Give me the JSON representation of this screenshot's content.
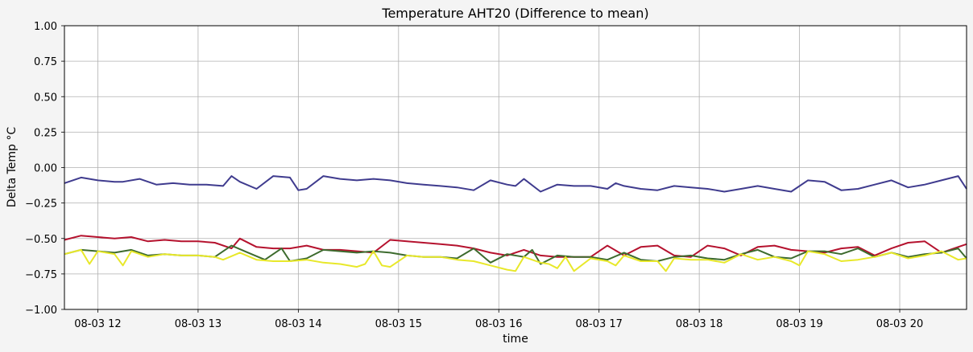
{
  "chart_data": {
    "type": "line",
    "title": "Temperature AHT20 (Difference to mean)",
    "xlabel": "time",
    "ylabel": "Delta Temp °C",
    "ylim": [
      -1.0,
      1.0
    ],
    "xlim": [
      "08-03 11:40",
      "08-03 20:40"
    ],
    "grid": true,
    "legend": "none",
    "yticks": [
      1.0,
      0.75,
      0.5,
      0.25,
      0.0,
      -0.25,
      -0.5,
      -0.75,
      -1.0
    ],
    "ytick_labels": [
      "1.00",
      "0.75",
      "0.50",
      "0.25",
      "0.00",
      "−0.25",
      "−0.50",
      "−0.75",
      "−1.00"
    ],
    "xticks": [
      "08-03 12:00",
      "08-03 13:00",
      "08-03 14:00",
      "08-03 15:00",
      "08-03 16:00",
      "08-03 17:00",
      "08-03 18:00",
      "08-03 19:00",
      "08-03 20:00"
    ],
    "xtick_labels": [
      "08-03 12",
      "08-03 13",
      "08-03 14",
      "08-03 15",
      "08-03 16",
      "08-03 17",
      "08-03 18",
      "08-03 19",
      "08-03 20"
    ],
    "series": [
      {
        "color": "#3f3b8e",
        "x": [
          "08-03 11:40",
          "08-03 11:50",
          "08-03 12:00",
          "08-03 12:10",
          "08-03 12:15",
          "08-03 12:25",
          "08-03 12:35",
          "08-03 12:45",
          "08-03 12:55",
          "08-03 13:05",
          "08-03 13:15",
          "08-03 13:20",
          "08-03 13:25",
          "08-03 13:35",
          "08-03 13:45",
          "08-03 13:55",
          "08-03 14:00",
          "08-03 14:05",
          "08-03 14:15",
          "08-03 14:25",
          "08-03 14:35",
          "08-03 14:45",
          "08-03 14:55",
          "08-03 15:05",
          "08-03 15:15",
          "08-03 15:25",
          "08-03 15:35",
          "08-03 15:45",
          "08-03 15:55",
          "08-03 16:05",
          "08-03 16:10",
          "08-03 16:15",
          "08-03 16:25",
          "08-03 16:35",
          "08-03 16:45",
          "08-03 16:55",
          "08-03 17:05",
          "08-03 17:10",
          "08-03 17:15",
          "08-03 17:25",
          "08-03 17:35",
          "08-03 17:45",
          "08-03 17:55",
          "08-03 18:05",
          "08-03 18:10",
          "08-03 18:15",
          "08-03 18:25",
          "08-03 18:35",
          "08-03 18:45",
          "08-03 18:55",
          "08-03 19:05",
          "08-03 19:15",
          "08-03 19:25",
          "08-03 19:35",
          "08-03 19:45",
          "08-03 19:55",
          "08-03 20:05",
          "08-03 20:15",
          "08-03 20:25",
          "08-03 20:35",
          "08-03 20:40"
        ],
        "y": [
          -0.11,
          -0.07,
          -0.09,
          -0.1,
          -0.1,
          -0.08,
          -0.12,
          -0.11,
          -0.12,
          -0.12,
          -0.13,
          -0.06,
          -0.1,
          -0.15,
          -0.06,
          -0.07,
          -0.16,
          -0.15,
          -0.06,
          -0.08,
          -0.09,
          -0.08,
          -0.09,
          -0.11,
          -0.12,
          -0.13,
          -0.14,
          -0.16,
          -0.09,
          -0.12,
          -0.13,
          -0.08,
          -0.17,
          -0.12,
          -0.13,
          -0.13,
          -0.15,
          -0.11,
          -0.13,
          -0.15,
          -0.16,
          -0.13,
          -0.14,
          -0.15,
          -0.16,
          -0.17,
          -0.15,
          -0.13,
          -0.15,
          -0.17,
          -0.09,
          -0.1,
          -0.16,
          -0.15,
          -0.12,
          -0.09,
          -0.14,
          -0.12,
          -0.09,
          -0.06,
          -0.15
        ]
      },
      {
        "color": "#b5122e",
        "x": [
          "08-03 11:40",
          "08-03 11:50",
          "08-03 12:00",
          "08-03 12:10",
          "08-03 12:20",
          "08-03 12:30",
          "08-03 12:40",
          "08-03 12:50",
          "08-03 13:00",
          "08-03 13:10",
          "08-03 13:20",
          "08-03 13:25",
          "08-03 13:35",
          "08-03 13:45",
          "08-03 13:55",
          "08-03 14:05",
          "08-03 14:15",
          "08-03 14:25",
          "08-03 14:35",
          "08-03 14:45",
          "08-03 14:55",
          "08-03 15:05",
          "08-03 15:15",
          "08-03 15:25",
          "08-03 15:35",
          "08-03 15:45",
          "08-03 15:55",
          "08-03 16:05",
          "08-03 16:15",
          "08-03 16:25",
          "08-03 16:35",
          "08-03 16:45",
          "08-03 16:55",
          "08-03 17:05",
          "08-03 17:15",
          "08-03 17:25",
          "08-03 17:35",
          "08-03 17:45",
          "08-03 17:55",
          "08-03 18:05",
          "08-03 18:15",
          "08-03 18:25",
          "08-03 18:35",
          "08-03 18:45",
          "08-03 18:55",
          "08-03 19:05",
          "08-03 19:15",
          "08-03 19:25",
          "08-03 19:35",
          "08-03 19:45",
          "08-03 19:55",
          "08-03 20:05",
          "08-03 20:15",
          "08-03 20:25",
          "08-03 20:35",
          "08-03 20:40"
        ],
        "y": [
          -0.51,
          -0.48,
          -0.49,
          -0.5,
          -0.49,
          -0.52,
          -0.51,
          -0.52,
          -0.52,
          -0.53,
          -0.57,
          -0.5,
          -0.56,
          -0.57,
          -0.57,
          -0.55,
          -0.58,
          -0.58,
          -0.59,
          -0.6,
          -0.51,
          -0.52,
          -0.53,
          -0.54,
          -0.55,
          -0.57,
          -0.6,
          -0.62,
          -0.58,
          -0.62,
          -0.63,
          -0.63,
          -0.63,
          -0.55,
          -0.62,
          -0.56,
          -0.55,
          -0.62,
          -0.63,
          -0.55,
          -0.57,
          -0.62,
          -0.56,
          -0.55,
          -0.58,
          -0.59,
          -0.6,
          -0.57,
          -0.56,
          -0.62,
          -0.57,
          -0.53,
          -0.52,
          -0.6,
          -0.56,
          -0.54
        ]
      },
      {
        "color": "#3d6b2e",
        "x": [
          "08-03 11:40",
          "08-03 11:50",
          "08-03 12:00",
          "08-03 12:10",
          "08-03 12:20",
          "08-03 12:30",
          "08-03 12:40",
          "08-03 12:50",
          "08-03 13:00",
          "08-03 13:10",
          "08-03 13:20",
          "08-03 13:30",
          "08-03 13:40",
          "08-03 13:50",
          "08-03 13:55",
          "08-03 14:05",
          "08-03 14:15",
          "08-03 14:25",
          "08-03 14:35",
          "08-03 14:45",
          "08-03 14:55",
          "08-03 15:05",
          "08-03 15:15",
          "08-03 15:25",
          "08-03 15:35",
          "08-03 15:45",
          "08-03 15:55",
          "08-03 16:05",
          "08-03 16:15",
          "08-03 16:20",
          "08-03 16:25",
          "08-03 16:35",
          "08-03 16:45",
          "08-03 16:55",
          "08-03 17:05",
          "08-03 17:15",
          "08-03 17:25",
          "08-03 17:35",
          "08-03 17:45",
          "08-03 17:55",
          "08-03 18:05",
          "08-03 18:15",
          "08-03 18:25",
          "08-03 18:35",
          "08-03 18:45",
          "08-03 18:55",
          "08-03 19:05",
          "08-03 19:15",
          "08-03 19:25",
          "08-03 19:35",
          "08-03 19:45",
          "08-03 19:55",
          "08-03 20:05",
          "08-03 20:15",
          "08-03 20:25",
          "08-03 20:35",
          "08-03 20:40"
        ],
        "y": [
          -0.61,
          -0.58,
          -0.59,
          -0.6,
          -0.58,
          -0.62,
          -0.61,
          -0.62,
          -0.62,
          -0.63,
          -0.55,
          -0.6,
          -0.65,
          -0.57,
          -0.66,
          -0.64,
          -0.58,
          -0.59,
          -0.6,
          -0.59,
          -0.6,
          -0.62,
          -0.63,
          -0.63,
          -0.64,
          -0.57,
          -0.67,
          -0.61,
          -0.63,
          -0.58,
          -0.68,
          -0.62,
          -0.63,
          -0.63,
          -0.65,
          -0.6,
          -0.65,
          -0.66,
          -0.63,
          -0.62,
          -0.64,
          -0.65,
          -0.61,
          -0.58,
          -0.63,
          -0.64,
          -0.59,
          -0.59,
          -0.61,
          -0.57,
          -0.63,
          -0.6,
          -0.63,
          -0.61,
          -0.6,
          -0.57,
          -0.64
        ]
      },
      {
        "color": "#e8e82a",
        "x": [
          "08-03 11:40",
          "08-03 11:50",
          "08-03 11:55",
          "08-03 12:00",
          "08-03 12:10",
          "08-03 12:15",
          "08-03 12:20",
          "08-03 12:30",
          "08-03 12:40",
          "08-03 12:50",
          "08-03 13:00",
          "08-03 13:10",
          "08-03 13:15",
          "08-03 13:25",
          "08-03 13:35",
          "08-03 13:45",
          "08-03 13:55",
          "08-03 14:05",
          "08-03 14:15",
          "08-03 14:25",
          "08-03 14:35",
          "08-03 14:40",
          "08-03 14:45",
          "08-03 14:50",
          "08-03 14:55",
          "08-03 15:05",
          "08-03 15:15",
          "08-03 15:25",
          "08-03 15:35",
          "08-03 15:45",
          "08-03 15:55",
          "08-03 16:05",
          "08-03 16:10",
          "08-03 16:15",
          "08-03 16:25",
          "08-03 16:30",
          "08-03 16:35",
          "08-03 16:40",
          "08-03 16:45",
          "08-03 16:55",
          "08-03 17:05",
          "08-03 17:10",
          "08-03 17:15",
          "08-03 17:25",
          "08-03 17:35",
          "08-03 17:40",
          "08-03 17:45",
          "08-03 17:55",
          "08-03 18:05",
          "08-03 18:15",
          "08-03 18:25",
          "08-03 18:35",
          "08-03 18:45",
          "08-03 18:55",
          "08-03 19:00",
          "08-03 19:05",
          "08-03 19:15",
          "08-03 19:25",
          "08-03 19:35",
          "08-03 19:45",
          "08-03 19:55",
          "08-03 20:05",
          "08-03 20:15",
          "08-03 20:25",
          "08-03 20:35",
          "08-03 20:40"
        ],
        "y": [
          -0.61,
          -0.58,
          -0.68,
          -0.59,
          -0.61,
          -0.69,
          -0.59,
          -0.63,
          -0.61,
          -0.62,
          -0.62,
          -0.63,
          -0.65,
          -0.6,
          -0.65,
          -0.66,
          -0.66,
          -0.65,
          -0.67,
          -0.68,
          -0.7,
          -0.68,
          -0.59,
          -0.69,
          -0.7,
          -0.62,
          -0.63,
          -0.63,
          -0.65,
          -0.66,
          -0.69,
          -0.72,
          -0.73,
          -0.63,
          -0.67,
          -0.68,
          -0.71,
          -0.63,
          -0.73,
          -0.64,
          -0.66,
          -0.69,
          -0.62,
          -0.66,
          -0.66,
          -0.73,
          -0.64,
          -0.65,
          -0.65,
          -0.67,
          -0.61,
          -0.65,
          -0.63,
          -0.66,
          -0.69,
          -0.59,
          -0.61,
          -0.66,
          -0.65,
          -0.63,
          -0.6,
          -0.64,
          -0.62,
          -0.59,
          -0.65,
          -0.64
        ]
      }
    ]
  }
}
